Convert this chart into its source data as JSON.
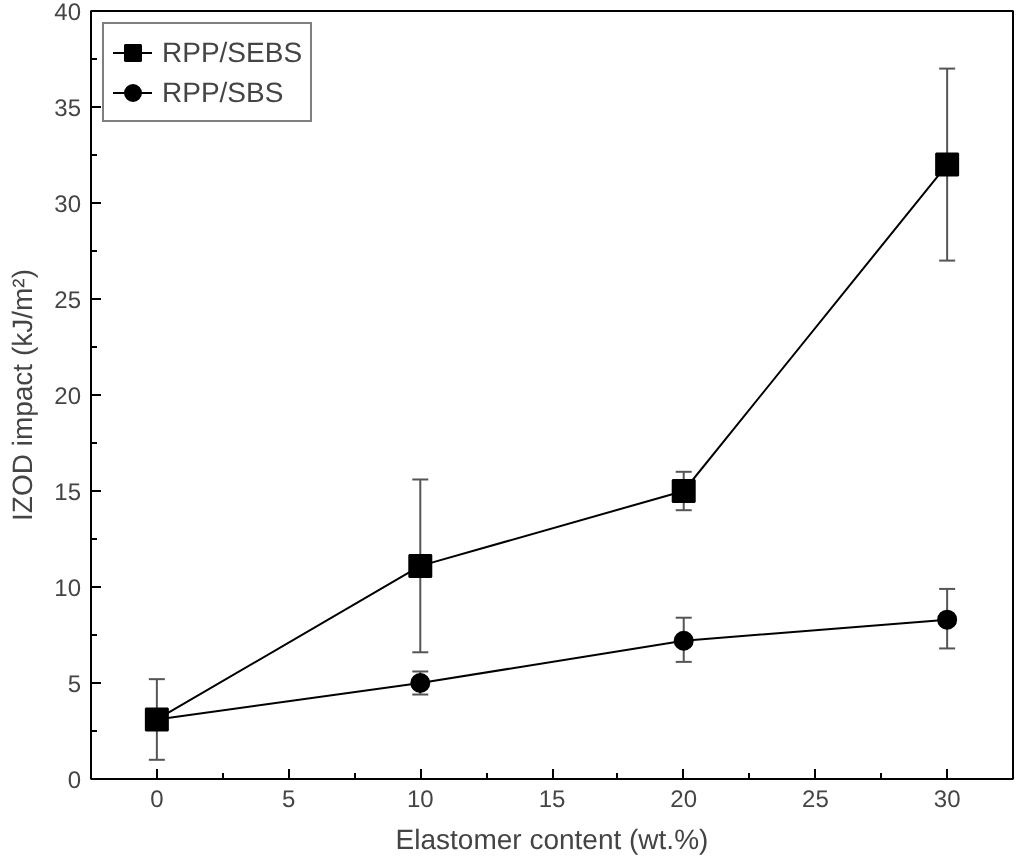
{
  "chart_data": {
    "type": "line",
    "xlabel": "Elastomer content (wt.%)",
    "ylabel": "IZOD impact (kJ/m²)",
    "x": [
      0,
      10,
      20,
      30
    ],
    "xlim": [
      -2.5,
      32.5
    ],
    "xticks": [
      0,
      5,
      10,
      15,
      20,
      25,
      30
    ],
    "ylim": [
      0,
      40
    ],
    "yticks": [
      0,
      5,
      10,
      15,
      20,
      25,
      30,
      35,
      40
    ],
    "grid": false,
    "legend": "top left",
    "line_style": "solid",
    "series": [
      {
        "name": "RPP/SEBS",
        "color": "#000000",
        "marker": "square",
        "values": [
          3.1,
          11.1,
          15.0,
          32.0
        ],
        "errors": [
          [
            1.0,
            5.2
          ],
          [
            6.6,
            15.6
          ],
          [
            14.0,
            16.0
          ],
          [
            27.0,
            37.0
          ]
        ]
      },
      {
        "name": "RPP/SBS",
        "color": "#000000",
        "marker": "circle",
        "values": [
          3.1,
          5.0,
          7.2,
          8.3
        ],
        "errors": [
          null,
          [
            4.4,
            5.6
          ],
          [
            6.1,
            8.4
          ],
          [
            6.8,
            9.9
          ]
        ]
      }
    ]
  }
}
